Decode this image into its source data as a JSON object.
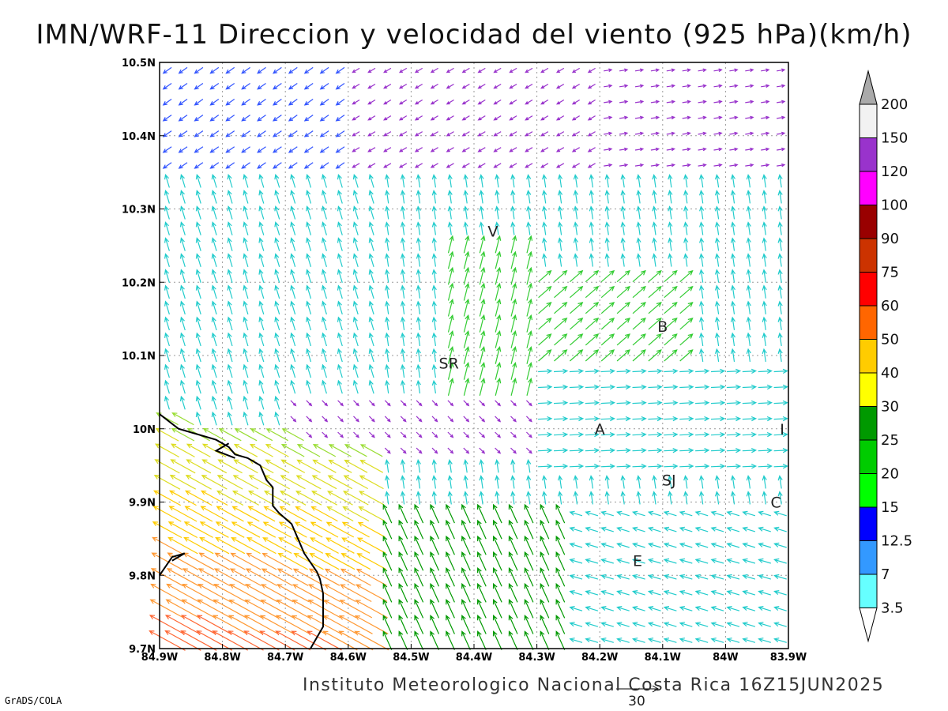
{
  "header": {
    "title": "IMN/WRF-11 Direccion y velocidad del viento (925 hPa)(km/h)"
  },
  "footer": {
    "credit": "Instituto Meteorologico Nacional Costa Rica 16Z15JUN2025",
    "software": "GrADS/COLA",
    "reference_vector_value": "30"
  },
  "axes": {
    "x_ticks": [
      "84.9W",
      "84.8W",
      "84.7W",
      "84.6W",
      "84.5W",
      "84.4W",
      "84.3W",
      "84.2W",
      "84.1W",
      "84W",
      "83.9W"
    ],
    "y_ticks": [
      "9.7N",
      "9.8N",
      "9.9N",
      "10N",
      "10.1N",
      "10.2N",
      "10.3N",
      "10.4N",
      "10.5N"
    ],
    "lon_range": [
      -84.9,
      -83.9
    ],
    "lat_range": [
      9.7,
      10.5
    ]
  },
  "places": [
    {
      "label": "V",
      "lon": -84.37,
      "lat": 10.27
    },
    {
      "label": "SR",
      "lon": -84.44,
      "lat": 10.09
    },
    {
      "label": "B",
      "lon": -84.1,
      "lat": 10.14
    },
    {
      "label": "A",
      "lon": -84.2,
      "lat": 10.0
    },
    {
      "label": "SJ",
      "lon": -84.09,
      "lat": 9.93
    },
    {
      "label": "C",
      "lon": -83.92,
      "lat": 9.9
    },
    {
      "label": "E",
      "lon": -84.14,
      "lat": 9.82
    },
    {
      "label": "I",
      "lon": -83.91,
      "lat": 10.0
    }
  ],
  "colorbar": {
    "labels": [
      "3.5",
      "7",
      "12.5",
      "15",
      "20",
      "25",
      "30",
      "40",
      "50",
      "60",
      "75",
      "90",
      "100",
      "120",
      "150",
      "200"
    ],
    "colors": [
      "#66ffff",
      "#3399ff",
      "#0000ff",
      "#00ff00",
      "#00cc00",
      "#009900",
      "#ffff00",
      "#ffcc00",
      "#ff6600",
      "#ff0000",
      "#cc3300",
      "#990000",
      "#ff00ff",
      "#9933cc",
      "#f2f2f2",
      "#aaaaaa"
    ]
  },
  "coastline": [
    [
      -84.9,
      10.02
    ],
    [
      -84.87,
      10.0
    ],
    [
      -84.83,
      9.99
    ],
    [
      -84.81,
      9.985
    ],
    [
      -84.79,
      9.975
    ],
    [
      -84.78,
      9.965
    ],
    [
      -84.76,
      9.96
    ],
    [
      -84.74,
      9.95
    ],
    [
      -84.73,
      9.93
    ],
    [
      -84.72,
      9.92
    ],
    [
      -84.72,
      9.895
    ],
    [
      -84.71,
      9.885
    ],
    [
      -84.69,
      9.87
    ],
    [
      -84.67,
      9.83
    ],
    [
      -84.65,
      9.805
    ],
    [
      -84.645,
      9.795
    ],
    [
      -84.64,
      9.775
    ],
    [
      -84.64,
      9.745
    ],
    [
      -84.64,
      9.73
    ],
    [
      -84.66,
      9.7
    ]
  ],
  "coast_fragments": [
    [
      [
        -84.79,
        9.98
      ],
      [
        -84.81,
        9.97
      ],
      [
        -84.78,
        9.96
      ]
    ],
    [
      [
        -84.9,
        9.8
      ],
      [
        -84.88,
        9.825
      ],
      [
        -84.86,
        9.83
      ],
      [
        -84.88,
        9.82
      ]
    ]
  ]
}
